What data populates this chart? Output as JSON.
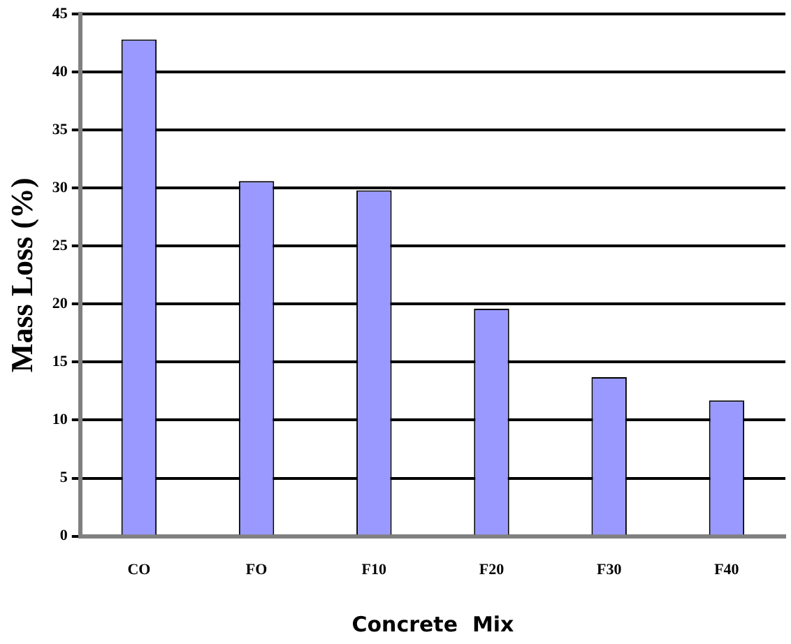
{
  "chart_data": {
    "type": "bar",
    "xlabel": "Concrete  Mix",
    "ylabel": "Mass Loss (%)",
    "categories": [
      "CO",
      "FO",
      "F10",
      "F20",
      "F30",
      "F40"
    ],
    "values": [
      42.8,
      30.6,
      29.8,
      19.6,
      13.7,
      11.7
    ],
    "color": "#9999ff",
    "ylim": [
      0,
      45
    ],
    "yticks": [
      0,
      5,
      10,
      15,
      20,
      25,
      30,
      35,
      40,
      45
    ],
    "grid": "y",
    "legend": false
  }
}
